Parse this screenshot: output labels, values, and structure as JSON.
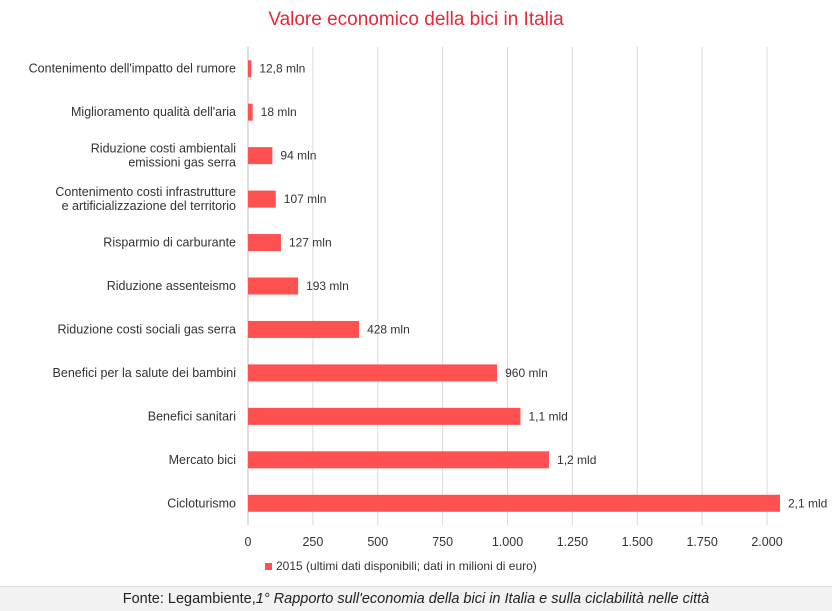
{
  "chart_data": {
    "type": "bar",
    "orientation": "horizontal",
    "title": "Valore economico della bici in Italia",
    "categories": [
      [
        "Contenimento dell'impatto del rumore"
      ],
      [
        "Miglioramento qualità dell'aria"
      ],
      [
        "Riduzione costi ambientali",
        "emissioni gas serra"
      ],
      [
        "Contenimento costi infrastrutture",
        "e artificializzazione del territorio"
      ],
      [
        "Risparmio di carburante"
      ],
      [
        "Riduzione assenteismo"
      ],
      [
        "Riduzione costi sociali gas serra"
      ],
      [
        "Benefici per la salute dei bambini"
      ],
      [
        "Benefici sanitari"
      ],
      [
        "Mercato bici"
      ],
      [
        "Cicloturismo"
      ]
    ],
    "series": [
      {
        "name": "2015 (ultimi dati disponibili; dati in milioni di euro)",
        "values": [
          12.8,
          18,
          94,
          107,
          127,
          193,
          428,
          960,
          1050,
          1160,
          2050
        ],
        "data_labels": [
          "12,8 mln",
          "18 mln",
          "94 mln",
          "107 mln",
          "127 mln",
          "193 mln",
          "428 mln",
          "960 mln",
          "1,1 mld",
          "1,2 mld",
          "2,1 mld"
        ]
      }
    ],
    "xlim": [
      0,
      2000
    ],
    "x_ticks": [
      "0",
      "250",
      "500",
      "750",
      "1.000",
      "1.250",
      "1.500",
      "1.750",
      "2.000"
    ],
    "grid": "vertical",
    "legend_position": "bottom"
  },
  "colors": {
    "bar": "#fe5150",
    "title": "#e6283a",
    "text": "#333333"
  },
  "source": {
    "prefix": "Fonte: Legambiente, ",
    "italic": "1° Rapporto sull'economia della bici in Italia e sulla ciclabilità nelle città"
  }
}
